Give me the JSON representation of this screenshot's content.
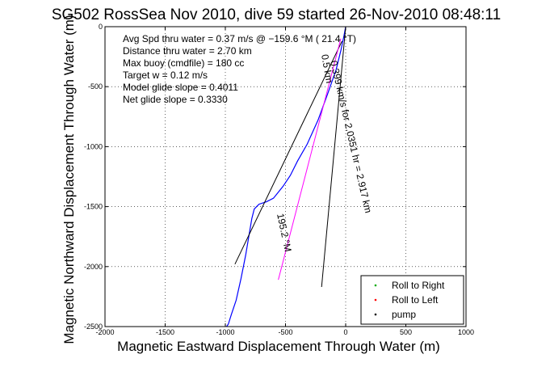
{
  "chart_data": {
    "type": "line",
    "title": "SG502 RossSea Nov 2010, dive 59 started 26-Nov-2010 08:48:11",
    "xlabel": "Magnetic Eastward Displacement Through Water (m)",
    "ylabel": "Magnetic Northward Displacement Through Water (m)",
    "xlim": [
      -2000,
      1000
    ],
    "ylim": [
      -2500,
      0
    ],
    "xticks": [
      -2000,
      -1500,
      -1000,
      -500,
      0,
      500,
      1000
    ],
    "yticks": [
      0,
      -500,
      -1000,
      -1500,
      -2000,
      -2500
    ],
    "grid": true,
    "annotations": [
      "Avg Spd thru water =  0.37 m/s @ −159.6   °M ( 21.4 °T)",
      "Distance thru water =  2.70 km",
      "Max buoy (cmdfile) = 180 cc",
      "Target w = 0.12 m/s",
      "Model glide slope = 0.4011",
      "Net glide slope = 0.3330"
    ],
    "rotated_labels": [
      "0.5 km",
      "0.399 km/s for 2.0351 hr = 2.917 km",
      "195.2 °M"
    ],
    "legend": {
      "placement": "bottom-right",
      "entries": [
        {
          "label": "Roll to Right",
          "color": "#00aa00"
        },
        {
          "label": "Roll to Left",
          "color": "#ff0000"
        },
        {
          "label": "pump",
          "color": "#000000"
        }
      ]
    },
    "series": [
      {
        "role": "track",
        "color": "#0000ff",
        "x": [
          0,
          -15,
          -40,
          -80,
          -150,
          -230,
          -320,
          -400,
          -460,
          -520,
          -560,
          -600,
          -660,
          -720,
          -760,
          -780,
          -800,
          -830,
          -870,
          -910,
          -950,
          -975,
          -990
        ],
        "y": [
          0,
          -80,
          -200,
          -360,
          -560,
          -780,
          -980,
          -1120,
          -1240,
          -1330,
          -1380,
          -1430,
          -1460,
          -1480,
          -1520,
          -1600,
          -1720,
          -1900,
          -2100,
          -2280,
          -2400,
          -2480,
          -2530
        ]
      },
      {
        "role": "glide-line-left",
        "color": "#000000",
        "x": [
          -30,
          -920
        ],
        "y": [
          -120,
          -1980
        ]
      },
      {
        "role": "current-line",
        "color": "#000000",
        "x": [
          0,
          -200
        ],
        "y": [
          0,
          -2170
        ]
      },
      {
        "role": "heading-line",
        "color": "#ff00ff",
        "x": [
          -40,
          -560
        ],
        "y": [
          -100,
          -2110
        ]
      }
    ]
  }
}
